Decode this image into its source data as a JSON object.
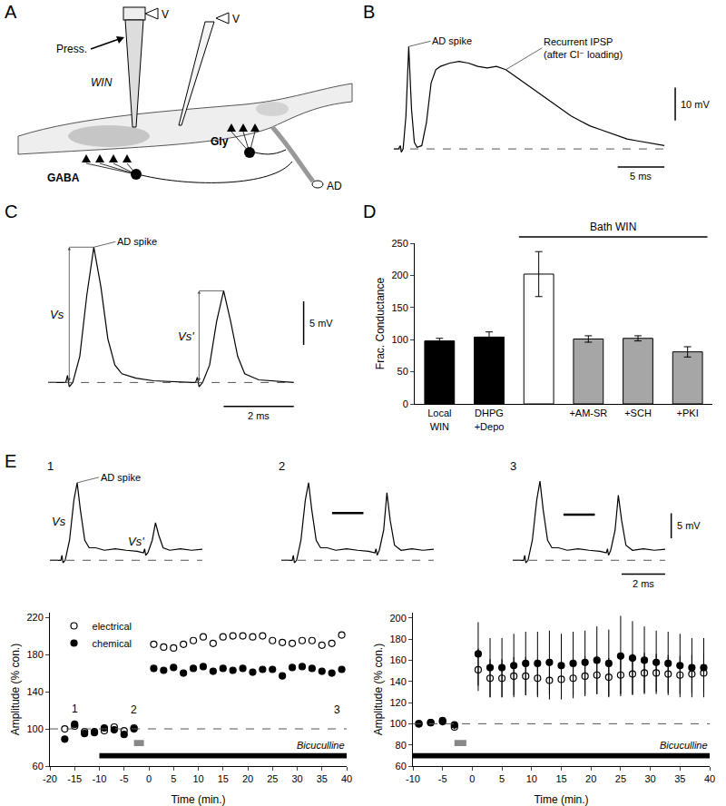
{
  "diagram": {
    "title": "A",
    "labels": {
      "v1": "V",
      "v2": "V",
      "press": "Press.",
      "drug": "WIN",
      "gaba": "GABA",
      "gly": "Gly",
      "ad": "AD"
    }
  },
  "chart_data": [
    {
      "type": "line",
      "title": "B",
      "color": "#000000",
      "tick_labels": false,
      "baseline": 0,
      "annotations": [
        "AD spike",
        "Recurrent IPSP",
        "(after Cl⁻ loading)"
      ],
      "scale_bars": {
        "x": 5,
        "x_label": "5 ms",
        "y": 10,
        "y_label": "10 mV"
      },
      "x": [
        -1,
        -0.5,
        -0.3,
        -0.2,
        0,
        0.3,
        0.6,
        0.9,
        1.2,
        1.5,
        2,
        2.5,
        3,
        3.5,
        4,
        5,
        6,
        7,
        8,
        9,
        10,
        11,
        12,
        13,
        14,
        15,
        16,
        17,
        18,
        19,
        20,
        21,
        22,
        23,
        24,
        25,
        26,
        27,
        28
      ],
      "values": [
        0,
        0,
        1,
        -1,
        0,
        10,
        31,
        12,
        2,
        0.5,
        1,
        8,
        20,
        24,
        25,
        26,
        26.5,
        26,
        25,
        24.5,
        25,
        24,
        22,
        20,
        18,
        16,
        14,
        12,
        10,
        8.5,
        7,
        6,
        5,
        4,
        3,
        2.5,
        2,
        1.5,
        1
      ]
    },
    {
      "type": "line",
      "title": "C",
      "color": "#000000",
      "tick_labels": false,
      "baseline": 0,
      "annotations": [
        "AD spike"
      ],
      "peak_labels": [
        "Vs",
        "Vs'"
      ],
      "scale_bars": {
        "x": 2,
        "x_label": "2 ms",
        "y": 5,
        "y_label": "5 mV"
      },
      "x": [
        -0.5,
        0,
        0.05,
        0.1,
        0.2,
        0.4,
        0.6,
        0.8,
        1.0,
        1.2,
        1.4,
        1.6,
        2,
        2.5,
        3.6,
        3.7,
        3.75,
        3.8,
        3.9,
        4.1,
        4.3,
        4.5,
        4.7,
        4.9,
        5.1,
        5.5,
        6.5
      ],
      "values": [
        0,
        0,
        0.8,
        -0.5,
        0,
        3,
        10,
        15.5,
        11,
        5,
        2,
        1,
        0.5,
        0.2,
        0,
        0,
        0.6,
        -0.5,
        0,
        2,
        7,
        10.5,
        7,
        3,
        1,
        0.3,
        0
      ]
    },
    {
      "type": "bar",
      "title": "D",
      "ylabel": "Frac. Conductance",
      "categories": [
        "Local WIN",
        "DHPG +Depo",
        null,
        "+AM-SR",
        "+SCH",
        "+PKI"
      ],
      "values": [
        98,
        104,
        202,
        101,
        102,
        81
      ],
      "errors": [
        4,
        8,
        35,
        5,
        4,
        8
      ],
      "colors": [
        "#000000",
        "#000000",
        "#ffffff",
        "#a6a6a6",
        "#a6a6a6",
        "#a6a6a6"
      ],
      "ylim": [
        0,
        250
      ],
      "yticks": [
        0,
        50,
        100,
        150,
        200,
        250
      ],
      "group": {
        "text": "Bath WIN",
        "from": 2,
        "to": 5
      }
    },
    {
      "type": "line",
      "title": "E",
      "color": "#000000",
      "tick_labels": false,
      "baseline": 0,
      "annotations": [
        "AD spike"
      ],
      "peak_labels": [
        "Vs",
        "Vs'"
      ],
      "scale_bars": {
        "x": 2,
        "x_label": "2 ms",
        "y": 5,
        "y_label": "5 mV"
      },
      "series": [
        {
          "name": "1",
          "x": [
            -0.5,
            0,
            0.05,
            0.1,
            0.2,
            0.4,
            0.6,
            0.75,
            0.9,
            1.1,
            1.3,
            1.6,
            2,
            2.5,
            3,
            3.5,
            3.8,
            3.85,
            3.9,
            4.0,
            4.2,
            4.35,
            4.5,
            4.7,
            5,
            5.5,
            6,
            6.5
          ],
          "values": [
            0,
            0,
            1,
            -0.5,
            0,
            4,
            12,
            15.5,
            10,
            4,
            2.5,
            2.5,
            2,
            2.3,
            2,
            1.8,
            1.5,
            2.3,
            1,
            1.5,
            4,
            7.5,
            5,
            2.5,
            2,
            2.3,
            2,
            2.2
          ]
        },
        {
          "name": "2",
          "x": [
            -0.5,
            0,
            0.05,
            0.1,
            0.2,
            0.4,
            0.6,
            0.75,
            0.9,
            1.1,
            1.3,
            1.6,
            2,
            2.5,
            3,
            3.5,
            3.8,
            3.85,
            3.9,
            4.0,
            4.2,
            4.35,
            4.5,
            4.7,
            5,
            5.5,
            6,
            6.5
          ],
          "values": [
            0,
            0,
            1,
            -0.5,
            0,
            4,
            12,
            15.5,
            10,
            4,
            2.5,
            2.5,
            2,
            2.3,
            2,
            1.8,
            1.5,
            2.3,
            1,
            2,
            6,
            13.5,
            8,
            3,
            2,
            2.3,
            2,
            2.2
          ]
        },
        {
          "name": "3",
          "x": [
            -0.5,
            0,
            0.05,
            0.1,
            0.2,
            0.4,
            0.6,
            0.75,
            0.9,
            1.1,
            1.3,
            1.6,
            2,
            2.5,
            3,
            3.5,
            3.8,
            3.85,
            3.9,
            4.0,
            4.2,
            4.35,
            4.5,
            4.7,
            5,
            5.5,
            6,
            6.5
          ],
          "values": [
            0,
            0,
            1,
            -0.5,
            0,
            4,
            12,
            15.8,
            10,
            4,
            2.5,
            2.5,
            2,
            2.3,
            2,
            1.8,
            1.5,
            2.3,
            1,
            2,
            6,
            13,
            8,
            3,
            2,
            2.3,
            2,
            2.2
          ]
        }
      ]
    },
    {
      "type": "scatter",
      "xlabel": "Time (min.)",
      "ylabel": "Amplitude (% con.)",
      "xlim": [
        -20,
        40
      ],
      "xticks": [
        -20,
        -15,
        -10,
        -5,
        0,
        5,
        10,
        15,
        20,
        25,
        30,
        35,
        40
      ],
      "ylim": [
        60,
        225
      ],
      "yticks": [
        60,
        100,
        140,
        180,
        220
      ],
      "legend": "top left",
      "reference": 100,
      "bicuculline": {
        "text": "Bicuculline",
        "x": [
          -10,
          40
        ]
      },
      "application": [
        -3,
        -1
      ],
      "point_labels": [
        {
          "text": "1",
          "x": -15,
          "y": 113
        },
        {
          "text": "2",
          "x": -3,
          "y": 112
        },
        {
          "text": "3",
          "x": 38,
          "y": 112
        }
      ],
      "series": [
        {
          "name": "electrical",
          "marker": "circle-open",
          "color": "#000000",
          "x": [
            -17,
            -15,
            -13,
            -11,
            -9,
            -7,
            -5,
            -3,
            1,
            3,
            5,
            7,
            9,
            11,
            13,
            15,
            17,
            19,
            21,
            23,
            25,
            27,
            29,
            31,
            33,
            35,
            37,
            39
          ],
          "values": [
            100,
            103,
            97,
            97,
            98,
            102,
            98,
            101,
            191,
            188,
            187,
            191,
            195,
            199,
            192,
            199,
            200,
            200,
            199,
            200,
            195,
            193,
            192,
            195,
            195,
            190,
            192,
            201
          ]
        },
        {
          "name": "chemical",
          "marker": "circle",
          "color": "#000000",
          "x": [
            -17,
            -15,
            -13,
            -11,
            -9,
            -7,
            -5,
            -3,
            1,
            3,
            5,
            7,
            9,
            11,
            13,
            15,
            17,
            19,
            21,
            23,
            25,
            27,
            29,
            31,
            33,
            35,
            37,
            39
          ],
          "values": [
            89,
            105,
            95,
            96,
            101,
            99,
            94,
            100,
            165,
            163,
            166,
            160,
            165,
            167,
            162,
            165,
            163,
            165,
            161,
            164,
            164,
            157,
            166,
            167,
            165,
            162,
            160,
            164
          ]
        }
      ]
    },
    {
      "type": "scatter",
      "xlabel": "Time (min.)",
      "ylabel": "Amplitude (% con.)",
      "xlim": [
        -10,
        40
      ],
      "xticks": [
        -10,
        -5,
        0,
        5,
        10,
        15,
        20,
        25,
        30,
        35,
        40
      ],
      "ylim": [
        60,
        205
      ],
      "yticks": [
        60,
        80,
        100,
        120,
        140,
        160,
        180,
        200
      ],
      "reference": 100,
      "bicuculline": {
        "text": "Bicuculline",
        "x": [
          -10,
          40
        ]
      },
      "application": [
        -3,
        -1
      ],
      "series": [
        {
          "marker": "circle-open",
          "color": "#000000",
          "x": [
            -9,
            -7,
            -5,
            -3,
            1,
            3,
            5,
            7,
            9,
            11,
            13,
            15,
            17,
            19,
            21,
            23,
            25,
            27,
            29,
            31,
            33,
            35,
            37,
            39
          ],
          "values": [
            100,
            101,
            102,
            97,
            151,
            143,
            143,
            145,
            145,
            143,
            141,
            142,
            143,
            145,
            146,
            144,
            146,
            147,
            148,
            148,
            147,
            146,
            147,
            148
          ],
          "errors": [
            2,
            2,
            2,
            2,
            20,
            18,
            18,
            18,
            18,
            18,
            18,
            19,
            19,
            19,
            18,
            18,
            18,
            19,
            19,
            18,
            18,
            18,
            18,
            18
          ]
        },
        {
          "marker": "circle",
          "color": "#000000",
          "x": [
            -9,
            -7,
            -5,
            -3,
            1,
            3,
            5,
            7,
            9,
            11,
            13,
            15,
            17,
            19,
            21,
            23,
            25,
            27,
            29,
            31,
            33,
            35,
            37,
            39
          ],
          "values": [
            100,
            101,
            103,
            99,
            166,
            153,
            153,
            155,
            157,
            157,
            158,
            155,
            157,
            158,
            160,
            157,
            164,
            162,
            160,
            158,
            157,
            155,
            153,
            153
          ],
          "errors": [
            2,
            2,
            2,
            2,
            30,
            28,
            28,
            30,
            30,
            30,
            30,
            30,
            30,
            30,
            32,
            32,
            38,
            35,
            32,
            30,
            30,
            30,
            28,
            28
          ]
        }
      ]
    }
  ]
}
